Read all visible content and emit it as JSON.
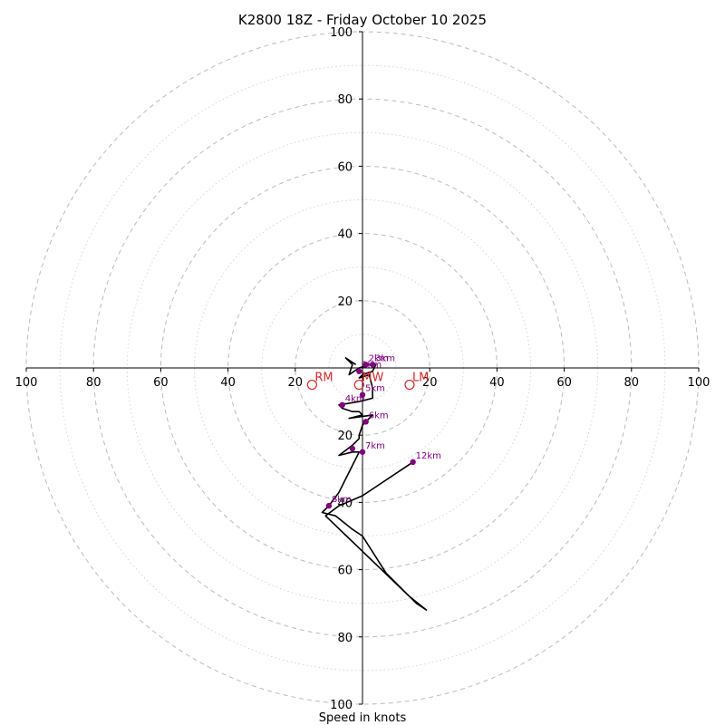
{
  "chart_data": {
    "type": "hodograph",
    "title": "K2800 18Z - Friday October 10 2025",
    "xlabel": "Speed in knots",
    "units": "knots",
    "range": [
      -100,
      100
    ],
    "ring_major": [
      20,
      40,
      60,
      80,
      100
    ],
    "ring_minor": [
      10,
      30,
      50,
      70,
      90
    ],
    "tick_labels_x": [
      "100",
      "80",
      "60",
      "40",
      "20",
      "20",
      "40",
      "60",
      "80",
      "100"
    ],
    "tick_values_x": [
      -100,
      -80,
      -60,
      -40,
      -20,
      20,
      40,
      60,
      80,
      100
    ],
    "tick_labels_y": [
      "100",
      "80",
      "60",
      "40",
      "20",
      "20",
      "40",
      "60",
      "80",
      "100"
    ],
    "tick_values_y": [
      100,
      80,
      60,
      40,
      20,
      -20,
      -40,
      -60,
      -80,
      -100
    ],
    "trace": [
      [
        -2,
        1
      ],
      [
        -5,
        3
      ],
      [
        -3,
        1
      ],
      [
        -4,
        -2
      ],
      [
        -1,
        0
      ],
      [
        2,
        1
      ],
      [
        4,
        1
      ],
      [
        3,
        -1
      ],
      [
        0,
        -2
      ],
      [
        -1,
        -3
      ],
      [
        2,
        -2
      ],
      [
        3,
        -6
      ],
      [
        3,
        -9
      ],
      [
        -1,
        -10
      ],
      [
        -7,
        -11
      ],
      [
        -6,
        -12
      ],
      [
        -3,
        -13
      ],
      [
        -1,
        -13
      ],
      [
        0,
        -14
      ],
      [
        -4,
        -15
      ],
      [
        3,
        -14
      ],
      [
        0,
        -17
      ],
      [
        -1,
        -20
      ],
      [
        -1,
        -21
      ],
      [
        -3,
        -23
      ],
      [
        -7,
        -26
      ],
      [
        -3,
        -25
      ],
      [
        -1,
        -25
      ],
      [
        -7,
        -37
      ],
      [
        -10,
        -41
      ],
      [
        -12,
        -43
      ],
      [
        -8,
        -44
      ],
      [
        -3,
        -48
      ],
      [
        0,
        -50
      ],
      [
        7,
        -61
      ],
      [
        16,
        -70
      ],
      [
        19,
        -72
      ],
      [
        14,
        -68
      ],
      [
        -11,
        -44
      ],
      [
        -7,
        -41
      ],
      [
        0,
        -38
      ],
      [
        15,
        -28
      ]
    ],
    "height_markers": [
      {
        "label": "1km",
        "u": -1,
        "v": -1
      },
      {
        "label": "2km",
        "u": 1,
        "v": 1
      },
      {
        "label": "3km",
        "u": 3,
        "v": 1
      },
      {
        "label": "4km",
        "u": -6,
        "v": -11
      },
      {
        "label": "5km",
        "u": 0,
        "v": -8
      },
      {
        "label": "6km",
        "u": 1,
        "v": -16
      },
      {
        "label": "7km",
        "u": 0,
        "v": -25
      },
      {
        "label": "",
        "u": -3,
        "v": -24
      },
      {
        "label": "8km",
        "u": -10,
        "v": -41
      },
      {
        "label": "12km",
        "u": 15,
        "v": -28
      }
    ],
    "storm_motions": [
      {
        "label": "RM",
        "u": -15,
        "v": -5
      },
      {
        "label": "LM",
        "u": 14,
        "v": -5
      },
      {
        "label": "MW",
        "u": -1,
        "v": -5
      }
    ],
    "colors": {
      "trace": "#000000",
      "markers": "#800080",
      "storm_motion": "#d62728",
      "grid": "#bbbbbb"
    }
  }
}
